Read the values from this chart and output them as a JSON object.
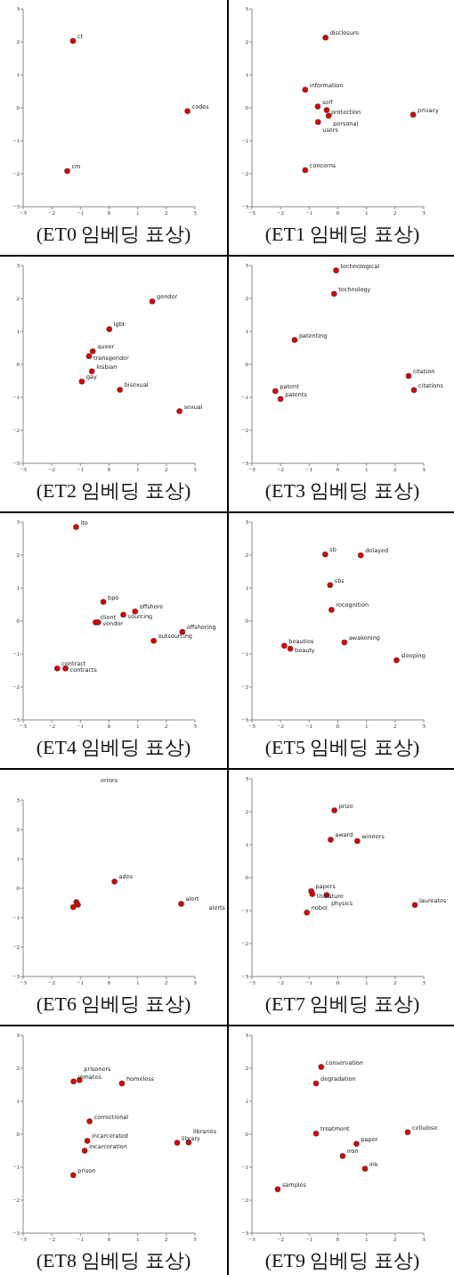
{
  "chart_data": [
    {
      "type": "scatter",
      "title": "(ET0 임베딩 표상)",
      "marker": "circle",
      "xlim": [
        -3,
        3
      ],
      "ylim": [
        -3,
        3
      ],
      "xticks": [
        -3,
        -2,
        -1,
        0,
        1,
        2,
        3
      ],
      "yticks": [
        -3,
        -2,
        -1,
        0,
        1,
        2,
        3
      ],
      "series": [
        {
          "color": "#e00000",
          "x": [
            -1.26,
            2.74,
            -1.46
          ],
          "values": [
            2.03,
            -0.1,
            -1.92
          ],
          "value_labels": [
            "ct",
            "codes",
            "cm"
          ]
        }
      ]
    },
    {
      "type": "scatter",
      "title": "(ET1 임베딩 표상)",
      "marker": "circle",
      "xlim": [
        -3,
        3
      ],
      "ylim": [
        -3,
        3
      ],
      "xticks": [
        -3,
        -2,
        -1,
        0,
        1,
        2,
        3
      ],
      "yticks": [
        -3,
        -2,
        -1,
        0,
        1,
        2,
        3
      ],
      "series": [
        {
          "color": "#e00000",
          "x": [
            -0.43,
            -1.14,
            -0.7,
            -0.39,
            -0.32,
            -0.69,
            2.63,
            -1.14
          ],
          "values": [
            2.13,
            0.55,
            0.04,
            -0.07,
            -0.24,
            -0.43,
            -0.21,
            -1.89
          ],
          "value_labels": [
            "disclosure",
            "information",
            "self",
            "protection",
            "personal",
            "users",
            "privacy",
            "concerns"
          ]
        }
      ]
    },
    {
      "type": "scatter",
      "title": "(ET2 임베딩 표상)",
      "marker": "circle",
      "xlim": [
        -3,
        3
      ],
      "ylim": [
        -3,
        3
      ],
      "xticks": [
        -3,
        -2,
        -1,
        0,
        1,
        2,
        3
      ],
      "yticks": [
        -3,
        -2,
        -1,
        0,
        1,
        2,
        3
      ],
      "series": [
        {
          "color": "#e00000",
          "x": [
            1.51,
            0.01,
            -0.57,
            -0.7,
            -0.6,
            -0.95,
            0.38,
            2.46
          ],
          "values": [
            1.91,
            1.07,
            0.4,
            0.25,
            -0.21,
            -0.52,
            -0.77,
            -1.42
          ],
          "value_labels": [
            "gender",
            "lgbt",
            "queer",
            "transgender",
            "lesbian",
            "gay",
            "bisexual",
            "sexual"
          ]
        }
      ]
    },
    {
      "type": "scatter",
      "title": "(ET3 임베딩 표상)",
      "marker": "circle",
      "xlim": [
        -3,
        3
      ],
      "ylim": [
        -3,
        3
      ],
      "xticks": [
        -3,
        -2,
        -1,
        0,
        1,
        2,
        3
      ],
      "yticks": [
        -3,
        -2,
        -1,
        0,
        1,
        2,
        3
      ],
      "series": [
        {
          "color": "#e00000",
          "x": [
            -0.06,
            -0.13,
            -1.51,
            2.47,
            2.66,
            -2.18,
            -2.0
          ],
          "values": [
            2.85,
            2.14,
            0.74,
            -0.35,
            -0.78,
            -0.81,
            -1.05
          ],
          "value_labels": [
            "technological",
            "technology",
            "patenting",
            "citation",
            "citations",
            "patent",
            "patents"
          ]
        }
      ]
    },
    {
      "type": "scatter",
      "title": "(ET4 임베딩 표상)",
      "marker": "circle",
      "xlim": [
        -3,
        3
      ],
      "ylim": [
        -3,
        3
      ],
      "xticks": [
        -3,
        -2,
        -1,
        0,
        1,
        2,
        3
      ],
      "yticks": [
        -3,
        -2,
        -1,
        0,
        1,
        2,
        3
      ],
      "series": [
        {
          "color": "#e00000",
          "x": [
            -1.15,
            -0.2,
            0.91,
            0.5,
            -0.47,
            -0.38,
            2.56,
            1.56,
            -1.81,
            -1.52
          ],
          "values": [
            2.85,
            0.58,
            0.29,
            0.19,
            -0.04,
            -0.04,
            -0.33,
            -0.6,
            -1.44,
            -1.44
          ],
          "value_labels": [
            "ito",
            "bpo",
            "offshore",
            "sourcing",
            "client",
            "vendor",
            "offshoring",
            "outsourcing",
            "contract",
            "contracts"
          ]
        }
      ]
    },
    {
      "type": "scatter",
      "title": "(ET5 임베딩 표상)",
      "marker": "circle",
      "xlim": [
        -3,
        3
      ],
      "ylim": [
        -3,
        3
      ],
      "xticks": [
        -3,
        -2,
        -1,
        0,
        1,
        2,
        3
      ],
      "yticks": [
        -3,
        -2,
        -1,
        0,
        1,
        2,
        3
      ],
      "series": [
        {
          "color": "#e00000",
          "x": [
            -0.44,
            0.8,
            -0.27,
            -0.22,
            0.23,
            -1.87,
            -1.66,
            2.05
          ],
          "values": [
            2.02,
            1.99,
            1.09,
            0.34,
            -0.65,
            -0.75,
            -0.84,
            -1.19
          ],
          "value_labels": [
            "sb",
            "delayed",
            "sbs",
            "recognition",
            "awakening",
            "beauties",
            "beauty",
            "sleeping"
          ]
        }
      ]
    },
    {
      "type": "scatter",
      "title": "(ET6 임베딩 표상)",
      "marker": "circle",
      "xlim": [
        -3,
        3
      ],
      "ylim": [
        -3,
        3
      ],
      "xticks": [
        -3,
        -2,
        -1,
        0,
        1,
        2,
        3
      ],
      "yticks": [
        -3,
        -2,
        -1,
        0,
        1,
        2,
        3
      ],
      "annotations": [
        "errors",
        "alerts"
      ],
      "series": [
        {
          "color": "#e00000",
          "x": [
            0.19,
            2.52,
            null,
            -1.14,
            -1.09,
            -1.25
          ],
          "values": [
            0.23,
            -0.53,
            null,
            -0.47,
            -0.56,
            -0.64
          ],
          "value_labels": [
            "ades",
            "alert",
            null,
            null,
            null,
            null
          ]
        }
      ]
    },
    {
      "type": "scatter",
      "title": "(ET7 임베딩 표상)",
      "marker": "circle",
      "xlim": [
        -3,
        3
      ],
      "ylim": [
        -3,
        3
      ],
      "xticks": [
        -3,
        -2,
        -1,
        0,
        1,
        2,
        3
      ],
      "yticks": [
        -3,
        -2,
        -1,
        0,
        1,
        2,
        3
      ],
      "series": [
        {
          "color": "#e00000",
          "x": [
            -0.12,
            -0.25,
            0.68,
            -0.93,
            -0.89,
            -0.39,
            -1.08,
            2.69
          ],
          "values": [
            2.04,
            1.15,
            1.11,
            -0.41,
            -0.5,
            -0.53,
            -1.06,
            -0.83
          ],
          "value_labels": [
            "prize",
            "award",
            "winners",
            "papers",
            "literature",
            "physics",
            "nobel",
            "laureates"
          ]
        }
      ]
    },
    {
      "type": "scatter",
      "title": "(ET8 임베딩 표상)",
      "marker": "circle",
      "xlim": [
        -3,
        3
      ],
      "ylim": [
        -3,
        3
      ],
      "xticks": [
        -3,
        -2,
        -1,
        0,
        1,
        2,
        3
      ],
      "yticks": [
        -3,
        -2,
        -1,
        0,
        1,
        2,
        3
      ],
      "series": [
        {
          "color": "#e00000",
          "x": [
            -1.24,
            -1.03,
            0.45,
            -0.68,
            -0.76,
            -0.85,
            -1.25,
            2.38,
            2.78
          ],
          "values": [
            1.6,
            1.64,
            1.54,
            0.39,
            -0.2,
            -0.5,
            -1.24,
            -0.26,
            -0.25
          ],
          "value_labels": [
            "inmates",
            "prisoners",
            "homeless",
            "correctional",
            "incarcerated",
            "incarceration",
            "prison",
            "library",
            "libraries"
          ]
        }
      ]
    },
    {
      "type": "scatter",
      "title": "(ET9 임베딩 표상)",
      "marker": "circle",
      "xlim": [
        -3,
        3
      ],
      "ylim": [
        -3,
        3
      ],
      "xticks": [
        -3,
        -2,
        -1,
        0,
        1,
        2,
        3
      ],
      "yticks": [
        -3,
        -2,
        -1,
        0,
        1,
        2,
        3
      ],
      "series": [
        {
          "color": "#e00000",
          "x": [
            -0.58,
            -0.76,
            -0.76,
            2.44,
            0.65,
            0.17,
            0.95,
            -2.1
          ],
          "values": [
            2.04,
            1.54,
            0.02,
            0.06,
            -0.29,
            -0.66,
            -1.05,
            -1.67
          ],
          "value_labels": [
            "conservation",
            "degradation",
            "treatment",
            "cellulose",
            "paper",
            "iron",
            "ink",
            "samples"
          ]
        }
      ]
    }
  ]
}
